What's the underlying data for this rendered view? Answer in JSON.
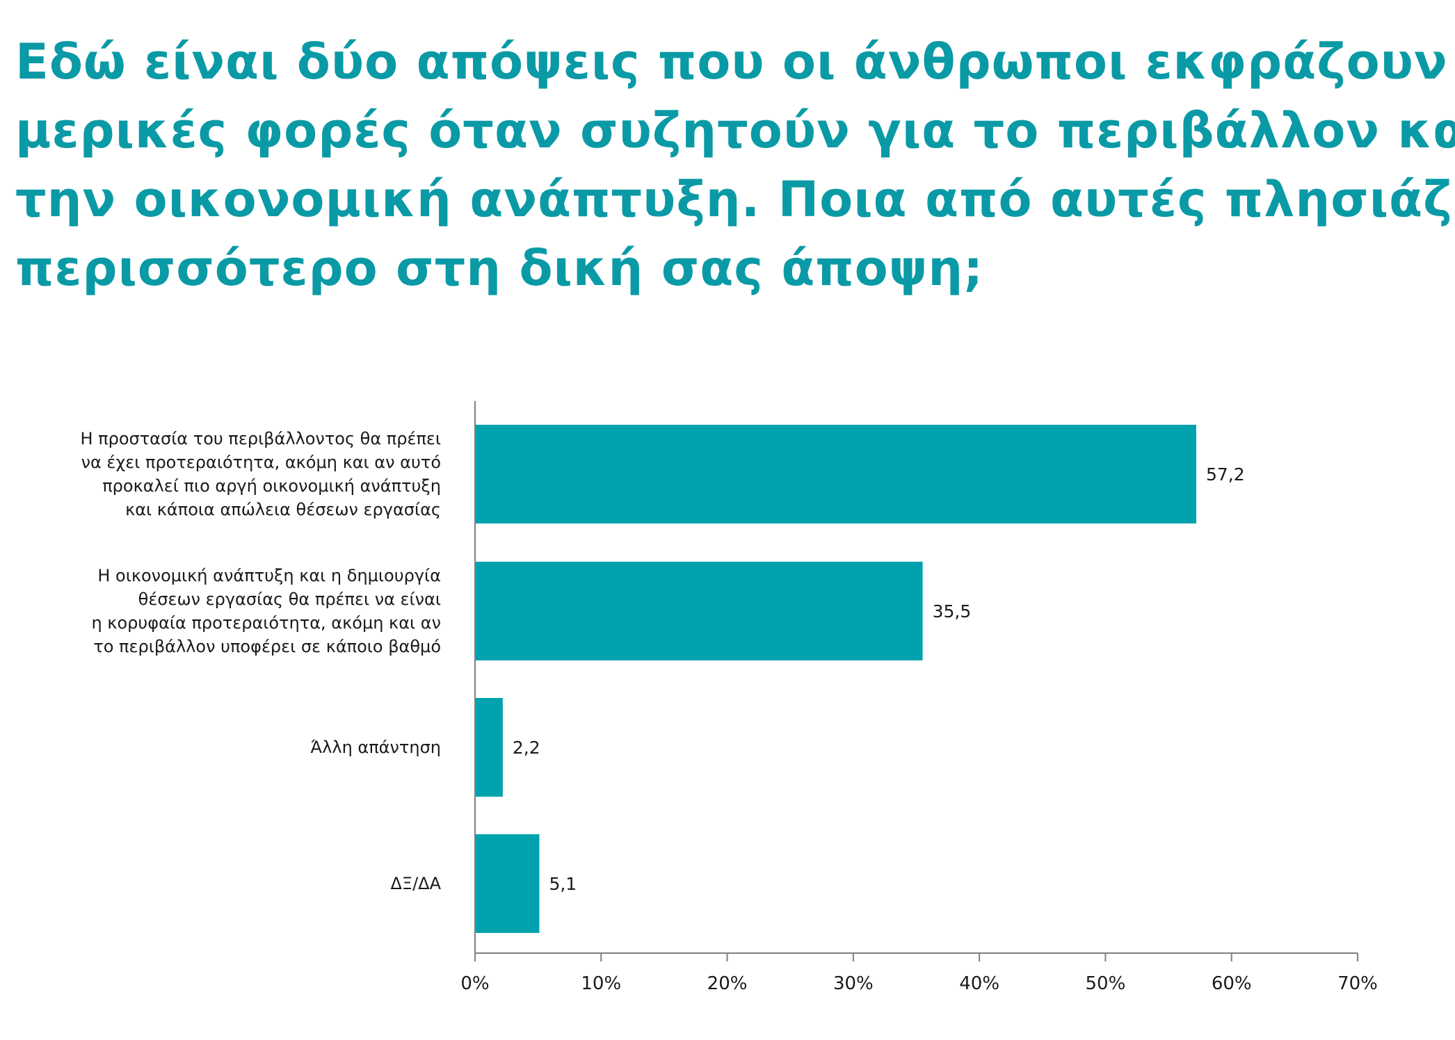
{
  "title_lines": [
    "Εδώ είναι δύο απόψεις που οι άνθρωποι  εκφράζουν",
    "μερικές φορές όταν συζητούν για το περιβάλλον και",
    "την οικονομική ανάπτυξη. Ποια από αυτές πλησιάζει",
    "περισσότερο στη δική σας άποψη;"
  ],
  "colors": {
    "title": "#0a9aa6",
    "bar": "#00a3ad",
    "axis": "#808080"
  },
  "chart_data": {
    "type": "bar",
    "orientation": "horizontal",
    "title": "Εδώ είναι δύο απόψεις που οι άνθρωποι  εκφράζουν μερικές φορές όταν συζητούν για το περιβάλλον και την οικονομική ανάπτυξη. Ποια από αυτές πλησιάζει περισσότερο στη δική σας άποψη;",
    "categories": [
      [
        "Η προστασία του περιβάλλοντος θα πρέπει",
        "να έχει προτεραιότητα, ακόμη και αν αυτό",
        "προκαλεί πιο αργή οικονομική ανάπτυξη",
        "και κάποια απώλεια θέσεων εργασίας"
      ],
      [
        "Η οικονομική ανάπτυξη και η δημιουργία",
        "θέσεων εργασίας θα πρέπει να είναι",
        "η κορυφαία προτεραιότητα, ακόμη και αν",
        "το περιβάλλον υποφέρει σε κάποιο βαθμό"
      ],
      [
        "Άλλη απάντηση"
      ],
      [
        "ΔΞ/ΔΑ"
      ]
    ],
    "values": [
      57.2,
      35.5,
      2.2,
      5.1
    ],
    "value_labels": [
      "57,2",
      "35,5",
      "2,2",
      "5,1"
    ],
    "xlim": [
      0,
      70
    ],
    "xticks": [
      0,
      10,
      20,
      30,
      40,
      50,
      60,
      70
    ],
    "xtick_labels": [
      "0%",
      "10%",
      "20%",
      "30%",
      "40%",
      "50%",
      "60%",
      "70%"
    ],
    "xlabel": "",
    "ylabel": "",
    "grid": false,
    "legend": "none"
  }
}
